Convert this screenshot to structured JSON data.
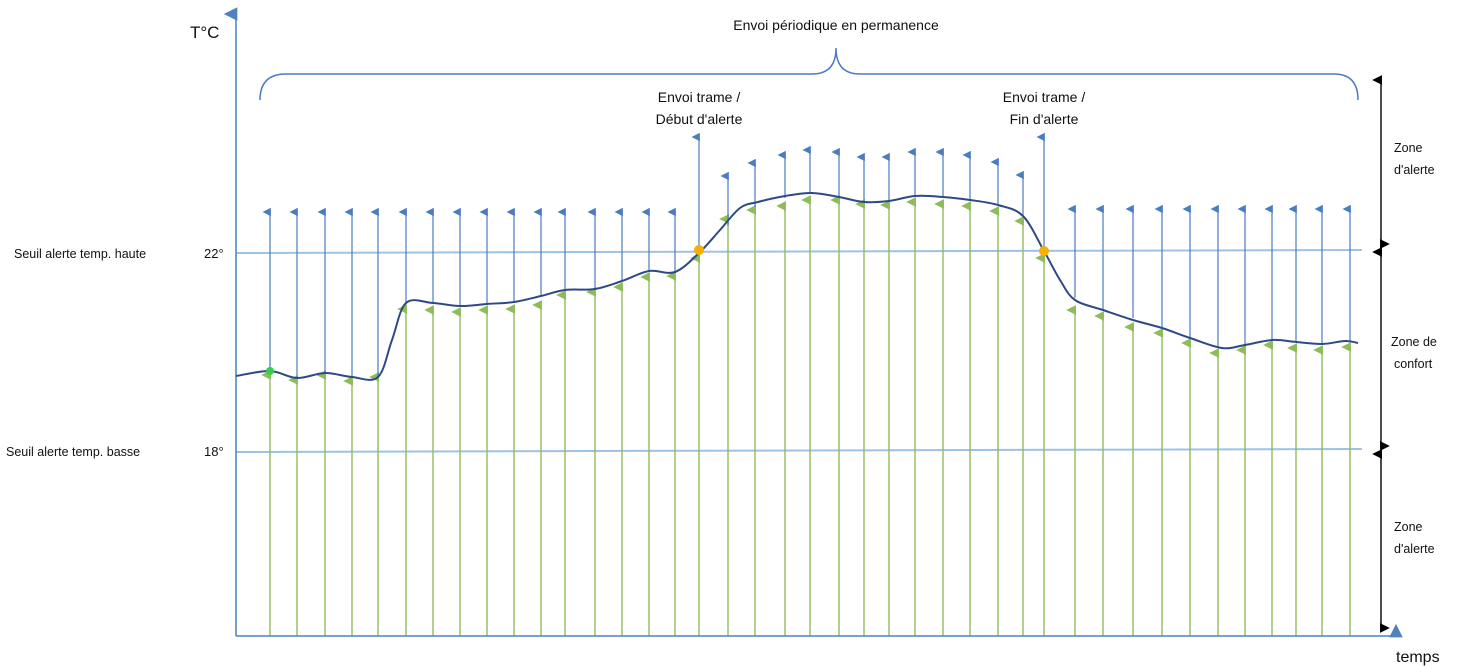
{
  "axes": {
    "y_label": "T°C",
    "x_label": "temps"
  },
  "thresholds": {
    "high": {
      "label": "Seuil alerte temp. haute",
      "value": 22,
      "value_label": "22°"
    },
    "low": {
      "label": "Seuil alerte temp. basse",
      "value": 18,
      "value_label": "18°"
    }
  },
  "brace_label": "Envoi périodique en permanence",
  "events": {
    "alert_start": {
      "line1": "Envoi trame /",
      "line2": "Début d'alerte"
    },
    "alert_end": {
      "line1": "Envoi trame /",
      "line2": "Fin d'alerte"
    }
  },
  "zones": {
    "upper": {
      "line1": "Zone",
      "line2": "d'alerte"
    },
    "comfort": {
      "line1": "Zone de",
      "line2": "confort"
    },
    "lower": {
      "line1": "Zone",
      "line2": "d'alerte"
    }
  },
  "colors": {
    "axis": "#4f81bd",
    "curve": "#2e4a86",
    "green_arrow": "#8fbc5a",
    "blue_arrow": "#4a7cc0",
    "event_marker": "#f5b000",
    "start_marker": "#32d04a"
  }
}
